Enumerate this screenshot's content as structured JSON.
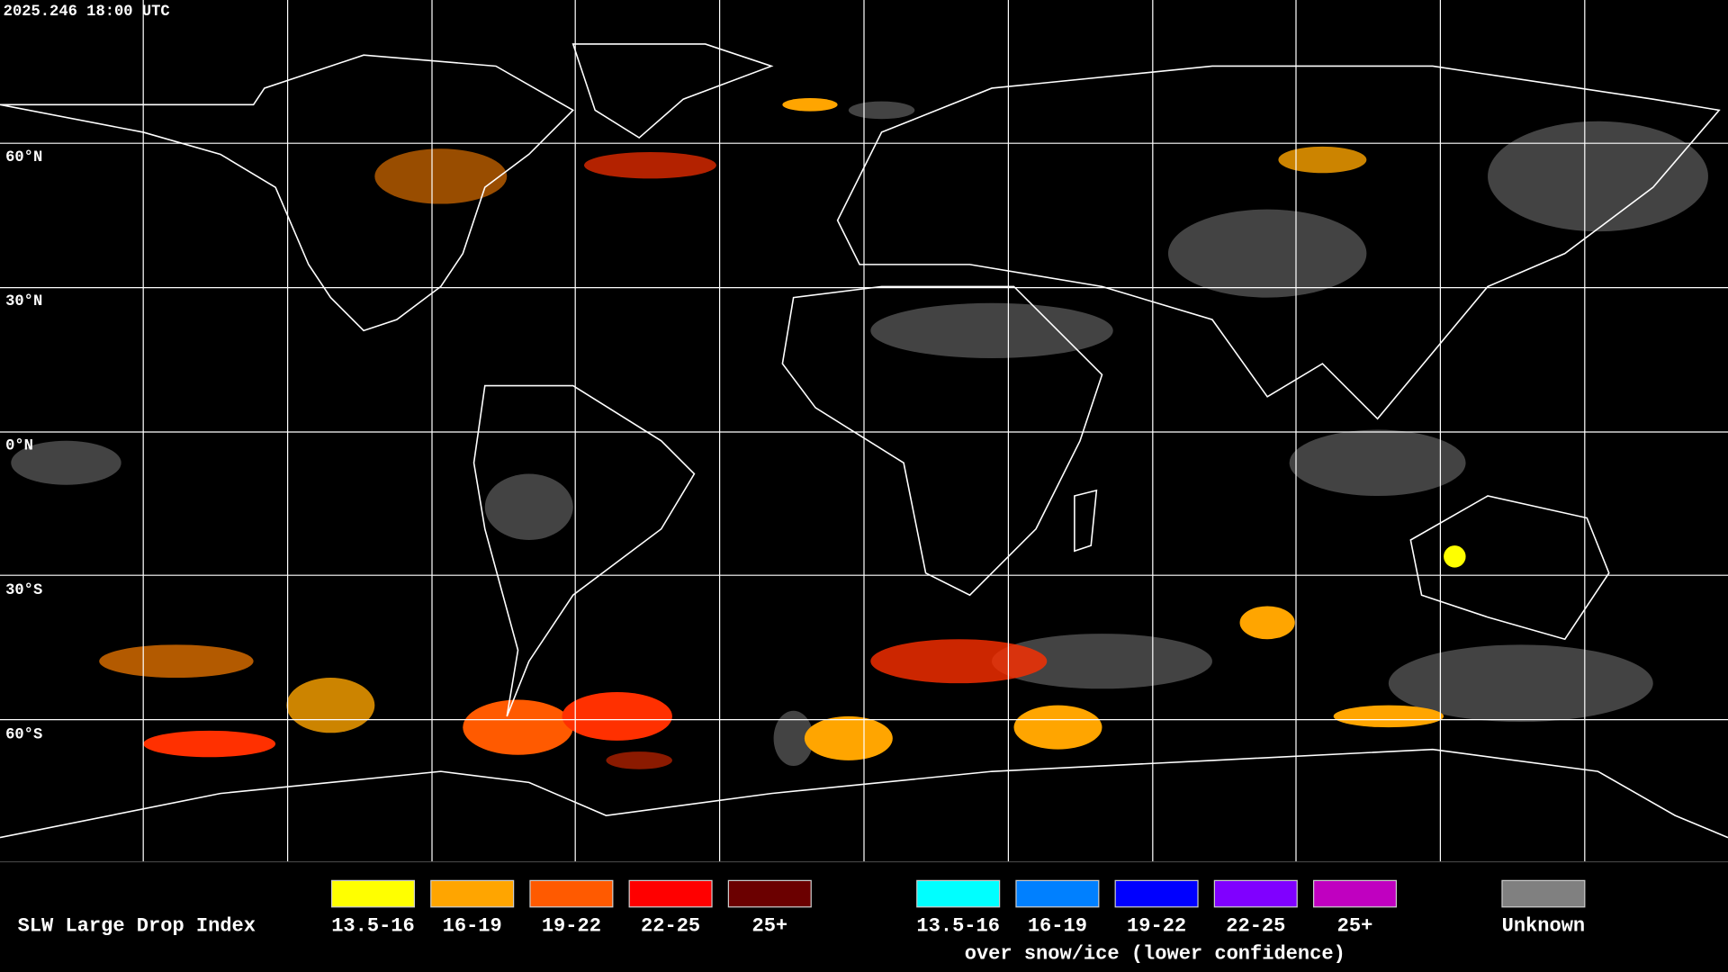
{
  "header": {
    "timestamp": "2025.246 18:00 UTC"
  },
  "map": {
    "latitude_labels": [
      "60°N",
      "30°N",
      "0°N",
      "30°S",
      "60°S"
    ]
  },
  "legend": {
    "title": "SLW Large Drop Index",
    "standard": [
      {
        "label": "13.5-16",
        "color": "#ffff00"
      },
      {
        "label": "16-19",
        "color": "#ffa500"
      },
      {
        "label": "19-22",
        "color": "#ff5a00"
      },
      {
        "label": "22-25",
        "color": "#ff0000"
      },
      {
        "label": "25+",
        "color": "#6b0000"
      }
    ],
    "snow_ice": {
      "items": [
        {
          "label": "13.5-16",
          "color": "#00ffff"
        },
        {
          "label": "16-19",
          "color": "#0080ff"
        },
        {
          "label": "19-22",
          "color": "#0000ff"
        },
        {
          "label": "22-25",
          "color": "#8000ff"
        },
        {
          "label": "25+",
          "color": "#c000c0"
        }
      ],
      "caption": "over snow/ice (lower confidence)"
    },
    "unknown": {
      "label": "Unknown",
      "color": "#808080"
    }
  }
}
